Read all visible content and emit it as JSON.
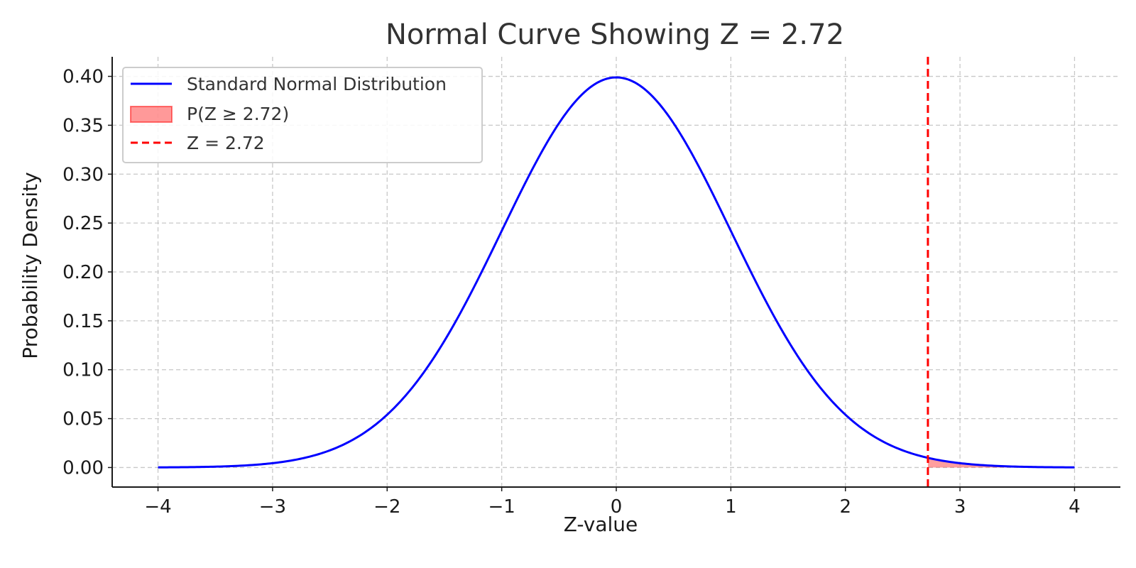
{
  "chart_data": {
    "type": "line",
    "title": "Normal Curve Showing Z = 2.72",
    "xlabel": "Z-value",
    "ylabel": "Probability Density",
    "xlim": [
      -4.4,
      4.4
    ],
    "ylim": [
      -0.02,
      0.42
    ],
    "x_ticks": [
      -4,
      -3,
      -2,
      -1,
      0,
      1,
      2,
      3,
      4
    ],
    "x_tick_labels": [
      "−4",
      "−3",
      "−2",
      "−1",
      "0",
      "1",
      "2",
      "3",
      "4"
    ],
    "y_ticks": [
      0,
      0.05,
      0.1,
      0.15,
      0.2,
      0.25,
      0.3,
      0.35,
      0.4
    ],
    "y_tick_labels": [
      "0.00",
      "0.05",
      "0.10",
      "0.15",
      "0.20",
      "0.25",
      "0.30",
      "0.35",
      "0.40"
    ],
    "grid": true,
    "legend_position": "top-left",
    "z_value": 2.72,
    "series": [
      {
        "name": "Standard Normal Distribution",
        "color": "#0000ff",
        "x": [
          -4,
          -3.5,
          -3,
          -2.5,
          -2,
          -1.5,
          -1,
          -0.5,
          0,
          0.5,
          1,
          1.5,
          2,
          2.5,
          3,
          3.5,
          4
        ],
        "y": [
          0.0001,
          0.0009,
          0.0044,
          0.0175,
          0.054,
          0.1295,
          0.242,
          0.3521,
          0.3989,
          0.3521,
          0.242,
          0.1295,
          0.054,
          0.0175,
          0.0044,
          0.0009,
          0.0001
        ]
      }
    ],
    "shaded_area": {
      "name": "P(Z ≥ 2.72)",
      "from": 2.72,
      "to": 4,
      "color": "#ff0000"
    },
    "vline": {
      "name": "Z = 2.72",
      "x": 2.72,
      "color": "#ff0000",
      "style": "dashed"
    }
  }
}
